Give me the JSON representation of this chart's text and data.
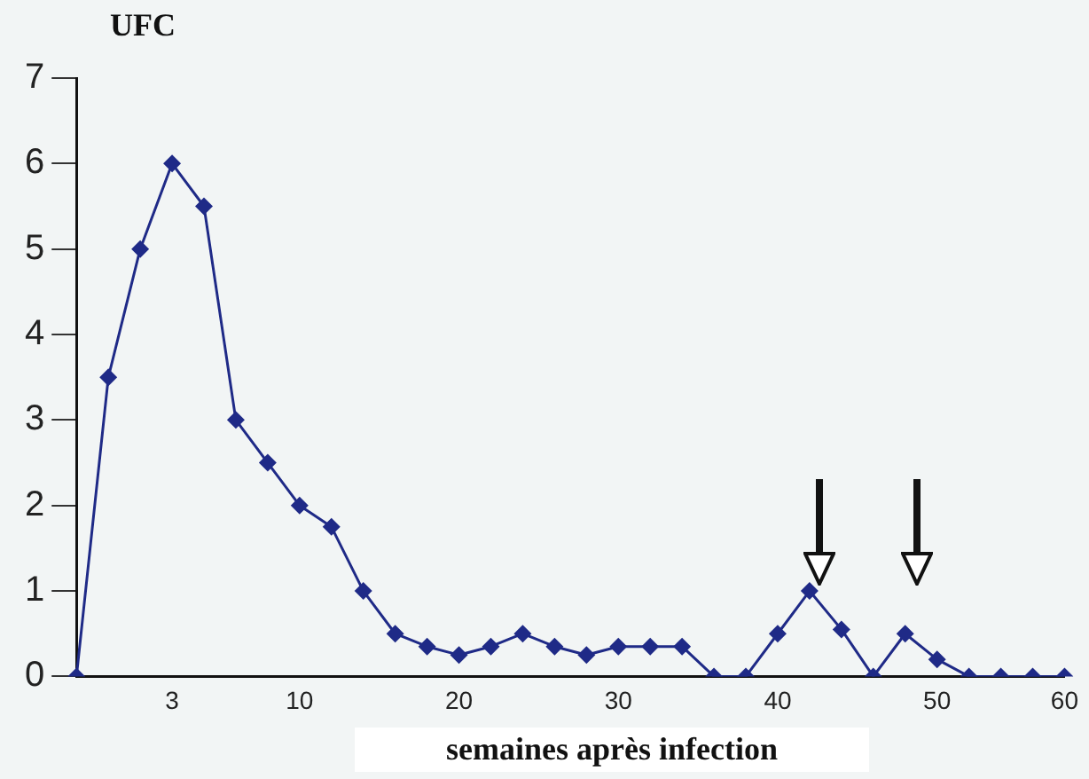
{
  "chart_data": {
    "type": "line",
    "ylabel": "UFC",
    "xlabel": "semaines après infection",
    "categories": [
      null,
      null,
      null,
      "3",
      null,
      null,
      null,
      "10",
      null,
      null,
      null,
      null,
      "20",
      null,
      null,
      null,
      null,
      "30",
      null,
      null,
      null,
      null,
      "40",
      null,
      null,
      null,
      null,
      "50",
      null,
      null,
      null,
      "60"
    ],
    "series": [
      {
        "color": "#1f2a87",
        "values": [
          0,
          3.5,
          5,
          6,
          5.5,
          3,
          2.5,
          2,
          1.75,
          1,
          0.5,
          0.35,
          0.25,
          0.35,
          0.5,
          0.35,
          0.25,
          0.35,
          0.35,
          0.35,
          0,
          0,
          0.5,
          1,
          0.55,
          0,
          0.5,
          0.2,
          0,
          0,
          0,
          0
        ]
      }
    ],
    "ylim": [
      0,
      7
    ],
    "yticks": [
      0,
      1,
      2,
      3,
      4,
      5,
      6,
      7
    ],
    "grid": false,
    "legend": false,
    "marker": "diamond",
    "line_style": "solid"
  }
}
